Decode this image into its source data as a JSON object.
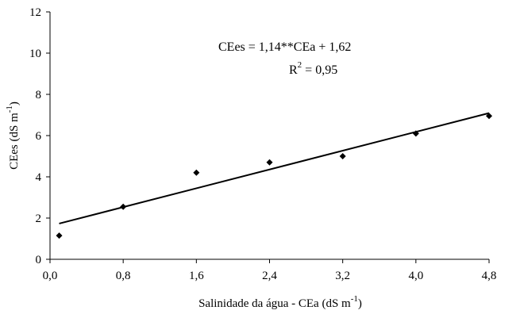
{
  "chart_data": {
    "type": "scatter",
    "xlabel": "Salinidade da água - CEa (dS m",
    "xlabel_sup": "-1",
    "xlabel_end": ")",
    "ylabel": "CEes (dS m",
    "ylabel_sup": "-1",
    "ylabel_end": ")",
    "xlim": [
      0.0,
      4.8
    ],
    "ylim": [
      0,
      12
    ],
    "x_ticks": [
      "0,0",
      "0,8",
      "1,6",
      "2,4",
      "3,2",
      "4,0",
      "4,8"
    ],
    "y_ticks": [
      "0",
      "2",
      "4",
      "6",
      "8",
      "10",
      "12"
    ],
    "grid": false,
    "series": [
      {
        "marker": "diamond",
        "x": [
          0.1,
          0.8,
          1.6,
          2.4,
          3.2,
          4.0,
          4.8
        ],
        "y": [
          1.15,
          2.55,
          4.2,
          4.7,
          5.0,
          6.1,
          6.95
        ]
      }
    ],
    "fit": {
      "slope": 1.14,
      "intercept": 1.62,
      "x_range": [
        0.1,
        4.8
      ]
    },
    "annotations": {
      "equation": "CEes = 1,14**CEa + 1,62",
      "r2_prefix": "R",
      "r2_sup": "2",
      "r2_value": " = 0,95"
    },
    "colors": {
      "marker": "#000000",
      "line": "#000000",
      "axis": "#000000"
    }
  }
}
